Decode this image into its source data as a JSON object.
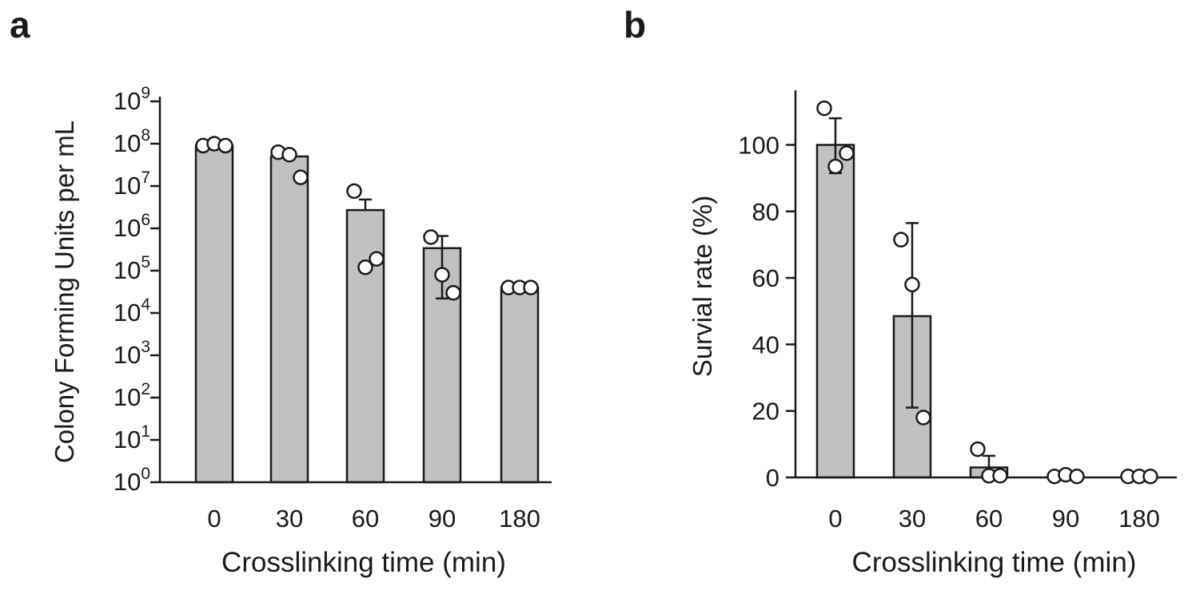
{
  "chart_data": [
    {
      "panel": "a",
      "type": "bar",
      "categories": [
        "0",
        "30",
        "60",
        "90",
        "180"
      ],
      "values": [
        90000000,
        50000000,
        2700000,
        340000,
        40000
      ],
      "error_high": [
        null,
        66000000,
        4800000,
        660000,
        null
      ],
      "error_low": [
        null,
        null,
        null,
        22000,
        null
      ],
      "points": [
        [
          90000000,
          100000000,
          90000000
        ],
        [
          63000000,
          55000000,
          16000000
        ],
        [
          7600000,
          120000,
          190000
        ],
        [
          620000,
          80000,
          30000
        ],
        [
          40000,
          40000,
          40000
        ]
      ],
      "ylabel": "Colony Forming Units per mL",
      "xlabel": "Crosslinking time (min)",
      "yscale": "log",
      "ylim_exp": [
        0,
        9
      ],
      "ytick_base": "10",
      "ytick_exponents": [
        "0",
        "1",
        "2",
        "3",
        "4",
        "5",
        "6",
        "7",
        "8",
        "9"
      ],
      "bar_color": "#bfc1c3"
    },
    {
      "panel": "b",
      "type": "bar",
      "categories": [
        "0",
        "30",
        "60",
        "90",
        "180"
      ],
      "values": [
        100,
        48.5,
        3,
        0,
        0
      ],
      "error_high": [
        108,
        76.5,
        6.5,
        null,
        null
      ],
      "error_low": [
        91.5,
        21,
        null,
        null,
        null
      ],
      "points": [
        [
          111,
          93.5,
          97.5
        ],
        [
          71.5,
          58,
          18
        ],
        [
          8.5,
          0.5,
          0.5
        ],
        [
          0.3,
          0.8,
          0.3
        ],
        [
          0.3,
          0.3,
          0.3
        ]
      ],
      "ylabel": "Survial rate (%)",
      "xlabel": "Crosslinking time (min)",
      "yscale": "linear",
      "ylim": [
        0,
        115
      ],
      "yticks": [
        0,
        20,
        40,
        60,
        80,
        100
      ],
      "bar_color": "#bfc1c3"
    }
  ],
  "panels": {
    "a_label": "a",
    "b_label": "b"
  }
}
